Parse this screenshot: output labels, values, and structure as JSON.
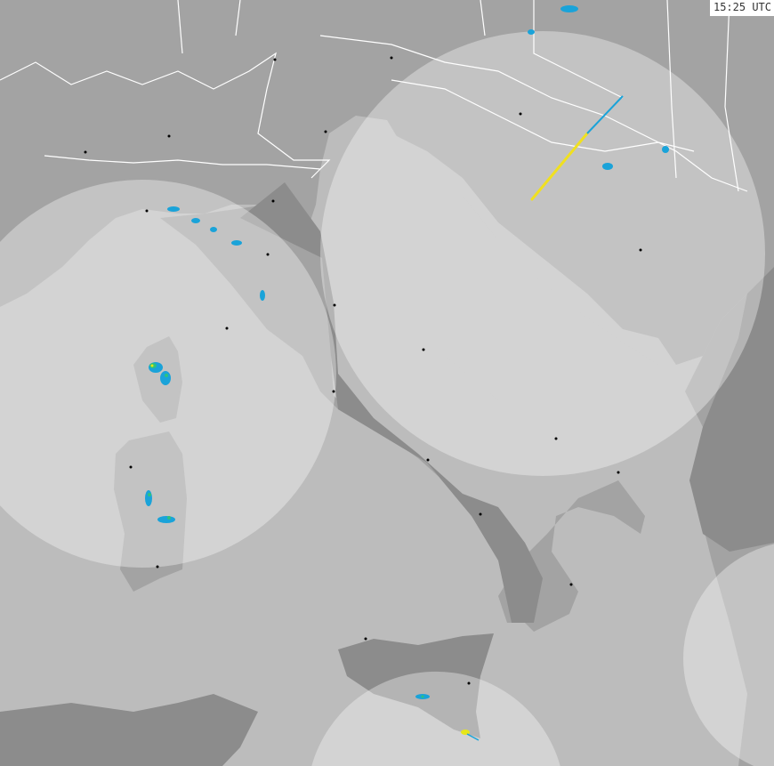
{
  "timestamp": "15:25 UTC",
  "colors": {
    "sea": "#bcbcbc",
    "land": "#a3a3a3",
    "land_out_of_range": "#8c8c8c",
    "coverage_sea": "#d4d4d4",
    "coverage_land": "#b9b9b9",
    "borders": "#ffffff",
    "echo_light": "#1aa3d9",
    "echo_medium": "#2ec27e",
    "echo_strong": "#e6e619",
    "lightning": "#f0e020"
  },
  "icons": [
    "city-dot",
    "radar-echo",
    "lightning-track"
  ]
}
